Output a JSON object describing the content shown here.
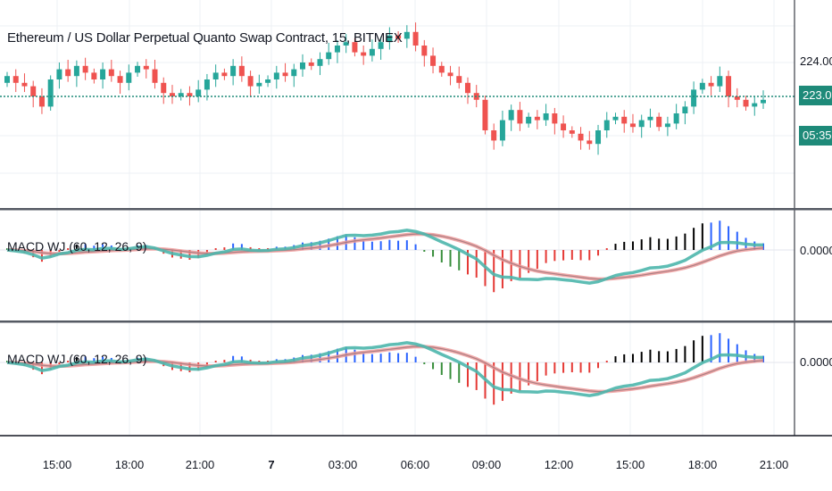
{
  "title": "Ethereum / US Dollar Perpetual Quanto Swap Contract, 15, BITMEX",
  "price_axis": {
    "labels": [
      "224.00"
    ],
    "last_price": "223.00",
    "countdown": "05:35"
  },
  "indicators": [
    {
      "title": "MACD WJ (60, 12, 26, 9)",
      "zero_label": "0.0000"
    },
    {
      "title": "MACD WJ (60, 12, 26, 9)",
      "zero_label": "0.0000"
    }
  ],
  "time_axis": {
    "labels": [
      "15:00",
      "18:00",
      "21:00",
      "7",
      "03:00",
      "06:00",
      "09:00",
      "12:00",
      "15:00",
      "18:00",
      "21:00"
    ]
  },
  "colors": {
    "up": "#26a69a",
    "down": "#ef5350",
    "macd_line": "#4db6ac",
    "signal_line": "#ef9a9a",
    "hist_blue": "#2962ff",
    "hist_green": "#388e3c",
    "hist_red": "#e53935",
    "hist_black": "#000000",
    "last_price_line": "#1e8a79"
  },
  "chart_data": {
    "type": "candlestick",
    "symbol": "Ethereum / US Dollar Perpetual Quanto Swap Contract",
    "interval": "15",
    "exchange": "BITMEX",
    "y_ticks": [
      224.0,
      223.0
    ],
    "last_price": 223.0,
    "x_ticks": [
      "15:00",
      "18:00",
      "21:00",
      "7",
      "03:00",
      "06:00",
      "09:00",
      "12:00",
      "15:00",
      "18:00",
      "21:00"
    ],
    "close_series": [
      223.6,
      223.4,
      223.3,
      223.0,
      222.7,
      223.5,
      223.8,
      223.6,
      223.9,
      223.7,
      223.5,
      223.8,
      223.6,
      223.4,
      223.7,
      223.9,
      223.8,
      223.4,
      223.1,
      223.0,
      223.1,
      223.0,
      223.2,
      223.5,
      223.7,
      223.6,
      223.9,
      223.6,
      223.3,
      223.4,
      223.5,
      223.7,
      223.6,
      223.8,
      224.0,
      223.9,
      224.1,
      224.3,
      224.5,
      224.6,
      224.3,
      224.2,
      224.4,
      224.6,
      224.8,
      224.7,
      224.9,
      224.5,
      224.2,
      223.9,
      223.7,
      223.6,
      223.4,
      223.1,
      222.9,
      222.0,
      221.7,
      222.3,
      222.6,
      222.2,
      222.4,
      222.3,
      222.5,
      222.2,
      222.0,
      221.9,
      221.7,
      221.6,
      222.0,
      222.3,
      222.4,
      222.2,
      222.1,
      222.3,
      222.4,
      222.1,
      222.2,
      222.5,
      222.7,
      223.2,
      223.4,
      223.3,
      223.6,
      223.0,
      222.9,
      222.7,
      222.8,
      222.9
    ]
  }
}
